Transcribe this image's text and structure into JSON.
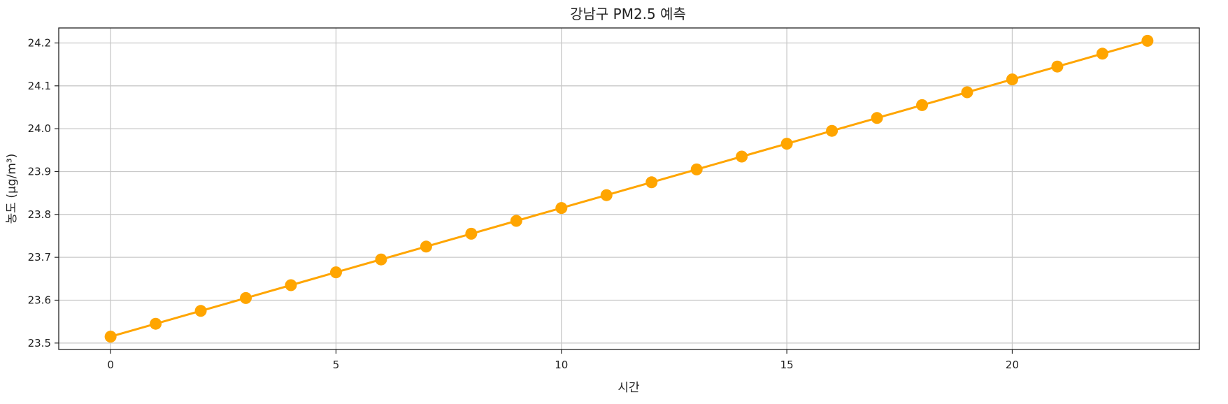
{
  "chart_data": {
    "type": "line",
    "title": "강남구 PM2.5 예측",
    "xlabel": "시간",
    "ylabel": "농도 (μg/m³)",
    "xlim": [
      -1.15,
      24.15
    ],
    "ylim": [
      23.485,
      24.235
    ],
    "x_ticks": [
      0,
      5,
      10,
      15,
      20
    ],
    "y_ticks": [
      23.5,
      23.6,
      23.7,
      23.8,
      23.9,
      24.0,
      24.1,
      24.2
    ],
    "y_tick_labels": [
      "23.5",
      "23.6",
      "23.7",
      "23.8",
      "23.9",
      "24.0",
      "24.1",
      "24.2"
    ],
    "grid": true,
    "line_color": "#ffa500",
    "series": [
      {
        "x": [
          0,
          1,
          2,
          3,
          4,
          5,
          6,
          7,
          8,
          9,
          10,
          11,
          12,
          13,
          14,
          15,
          16,
          17,
          18,
          19,
          20,
          21,
          22,
          23
        ],
        "values": [
          23.515,
          23.545,
          23.575,
          23.605,
          23.635,
          23.665,
          23.695,
          23.725,
          23.755,
          23.785,
          23.815,
          23.845,
          23.875,
          23.905,
          23.935,
          23.965,
          23.995,
          24.025,
          24.055,
          24.085,
          24.115,
          24.145,
          24.175,
          24.205
        ]
      }
    ]
  }
}
